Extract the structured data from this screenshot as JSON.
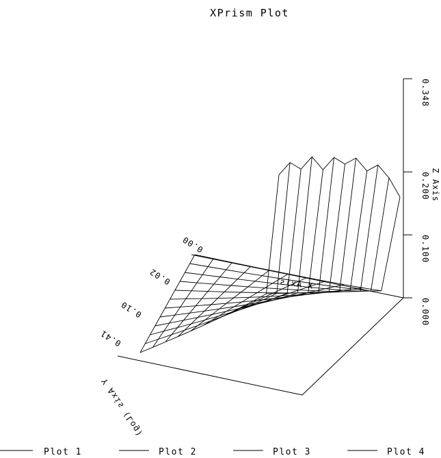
{
  "chart_data": {
    "type": "surface",
    "title": "XPrism Plot",
    "z_axis": {
      "label": "Z Axis",
      "ticks": [
        "0.000",
        "0.100",
        "0.200",
        "0.348"
      ],
      "tick_values": [
        0,
        0.1,
        0.2,
        0.348
      ],
      "range": [
        0,
        0.348
      ]
    },
    "y_axis": {
      "label": "Y Axis (Log)",
      "ticks": [
        "0.00",
        "0.02",
        "0.10",
        "0.41"
      ]
    },
    "x_axis": {
      "label": "X Axis",
      "ticks": []
    },
    "grid_size": [
      12,
      12
    ],
    "surface_shape": "near zero across most of the grid, rising sharply to about 0.22 along the back-right edge",
    "peak_values": [
      0.19,
      0.21,
      0.2,
      0.22,
      0.2,
      0.22,
      0.21,
      0.22,
      0.2,
      0.21,
      0.19,
      0.16
    ],
    "legend_position": "bottom",
    "series": [
      {
        "name": "Plot 1"
      },
      {
        "name": "Plot 2"
      },
      {
        "name": "Plot 3"
      },
      {
        "name": "Plot 4"
      }
    ],
    "grid": false,
    "line_color": "#000000",
    "background": "#ffffff"
  }
}
